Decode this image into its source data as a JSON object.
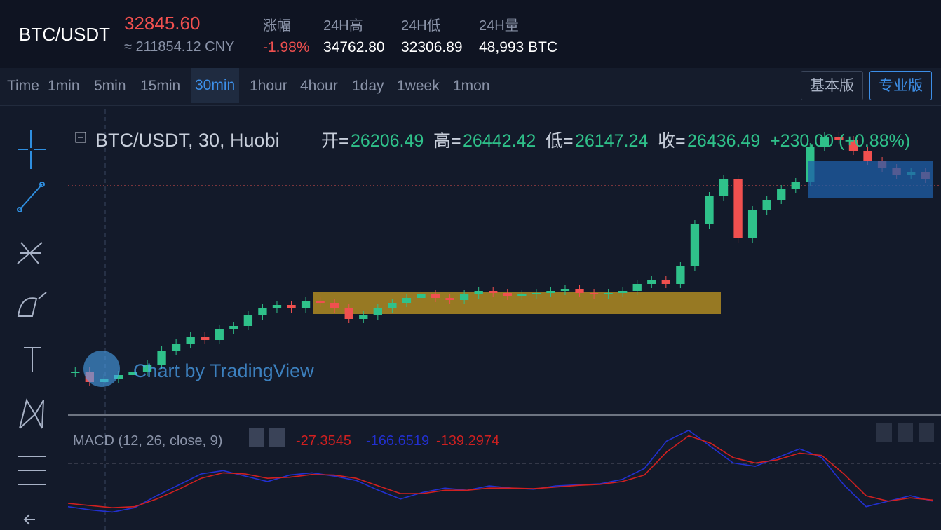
{
  "header": {
    "pair": "BTC/USDT",
    "price": "32845.60",
    "cny": "≈ 211854.12 CNY",
    "stats": [
      {
        "label": "涨幅",
        "value": "-1.98%"
      },
      {
        "label": "24H高",
        "value": "34762.80"
      },
      {
        "label": "24H低",
        "value": "32306.89"
      },
      {
        "label": "24H量",
        "value": "48,993 BTC"
      }
    ]
  },
  "toolbar": {
    "intervals": [
      "Time",
      "1min",
      "5min",
      "15min",
      "30min",
      "1hour",
      "4hour",
      "1day",
      "1week",
      "1mon"
    ],
    "active_interval": "30min",
    "versions": [
      "基本版",
      "专业版"
    ],
    "active_version": "专业版"
  },
  "legend": {
    "symbol": "BTC/USDT, 30, Huobi",
    "ohlc": [
      {
        "label": "开=",
        "value": "26206.49"
      },
      {
        "label": "高=",
        "value": "26442.42"
      },
      {
        "label": "低=",
        "value": "26147.24"
      },
      {
        "label": "收=",
        "value": "26436.49"
      }
    ],
    "change": "+230.00 (+0.88%)"
  },
  "watermark": "Chart by TradingView",
  "chart": {
    "type": "candlestick",
    "ylim": [
      24000,
      34000
    ],
    "up_color": "#2fc18a",
    "down_color": "#f0504f",
    "closes": [
      25250,
      24875,
      25000,
      25125,
      25250,
      25500,
      26000,
      26250,
      26500,
      26375,
      26750,
      26875,
      27250,
      27500,
      27625,
      27500,
      27750,
      27700,
      27500,
      27125,
      27250,
      27500,
      27700,
      27875,
      28000,
      27875,
      27800,
      28000,
      28125,
      28050,
      27950,
      28000,
      28050,
      28125,
      28200,
      28050,
      28000,
      28050,
      28125,
      28375,
      28500,
      28375,
      29000,
      30500,
      31500,
      32125,
      30000,
      31000,
      31375,
      31750,
      32000,
      33250,
      33625,
      33500,
      33125,
      32750,
      32500,
      32250,
      32375,
      32125
    ]
  },
  "macd": {
    "title": "MACD (12, 26, close, 9)",
    "readouts": [
      "-27.3545",
      "-166.6519",
      "-139.2974"
    ],
    "ylim": [
      -400,
      500
    ],
    "series": [
      {
        "color": "#2230d0",
        "values": [
          -250,
          -280,
          -300,
          -260,
          -150,
          -50,
          50,
          80,
          30,
          -20,
          40,
          60,
          30,
          -10,
          -100,
          -180,
          -120,
          -80,
          -100,
          -60,
          -80,
          -90,
          -60,
          -50,
          -40,
          0,
          100,
          350,
          450,
          300,
          150,
          120,
          200,
          280,
          200,
          -50,
          -250,
          -200,
          -150,
          -200
        ]
      },
      {
        "color": "#d02020",
        "values": [
          -220,
          -240,
          -260,
          -250,
          -180,
          -90,
          10,
          60,
          50,
          10,
          20,
          45,
          40,
          10,
          -60,
          -130,
          -130,
          -100,
          -100,
          -80,
          -80,
          -85,
          -70,
          -55,
          -45,
          -20,
          40,
          250,
          400,
          330,
          200,
          150,
          180,
          240,
          220,
          50,
          -150,
          -200,
          -170,
          -190
        ]
      }
    ]
  }
}
